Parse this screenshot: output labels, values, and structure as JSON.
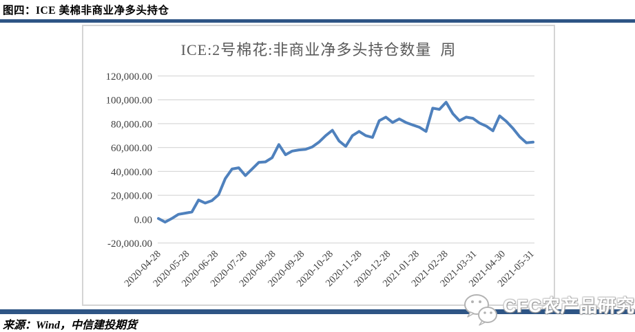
{
  "figure": {
    "title": "图四：ICE 美棉非商业净多头持仓"
  },
  "footer": {
    "source": "来源：Wind，中信建投期货"
  },
  "watermark": {
    "icon": "wechat-logo",
    "text": "CFC农产品研究"
  },
  "colors": {
    "accent_bar": "#2e5585",
    "line": "#4f81bd",
    "gridline": "#d9d9d9",
    "axis_text": "#404040",
    "title_text": "#595959",
    "frame_border": "#d4d4d4"
  },
  "chart_data": {
    "type": "line",
    "title": "ICE:2号棉花:非商业净多头持仓数量  周",
    "frequency_label": "周",
    "grid": true,
    "legend": "none",
    "ylim": [
      -20000,
      120000
    ],
    "y_ticks": {
      "labels": [
        "120,000.00",
        "100,000.00",
        "80,000.00",
        "60,000.00",
        "40,000.00",
        "20,000.00",
        "0.00",
        "-20,000.00"
      ],
      "values": [
        120000,
        100000,
        80000,
        60000,
        40000,
        20000,
        0,
        -20000
      ]
    },
    "x_tick_labels": [
      "2020-04-28",
      "2020-05-28",
      "2020-06-28",
      "2020-07-28",
      "2020-08-28",
      "2020-09-28",
      "2020-10-28",
      "2020-11-28",
      "2020-12-28",
      "2021-01-28",
      "2021-02-28",
      "2021-03-31",
      "2021-04-30",
      "2021-05-31"
    ],
    "series": [
      {
        "name": "ICE:2号棉花:非商业净多头持仓数量",
        "values": [
          500,
          -2500,
          500,
          4000,
          5000,
          6000,
          16000,
          13500,
          15500,
          20500,
          34000,
          42000,
          43000,
          36500,
          42000,
          47500,
          48000,
          51500,
          62500,
          54000,
          57000,
          58000,
          58500,
          60500,
          64500,
          70000,
          74500,
          65500,
          61000,
          70000,
          73500,
          70000,
          68500,
          82500,
          85500,
          81000,
          84000,
          81000,
          79000,
          77000,
          73500,
          93000,
          92000,
          98000,
          88500,
          82500,
          85500,
          84500,
          80500,
          78000,
          74000,
          86500,
          82000,
          76000,
          69000,
          64000,
          64500
        ]
      }
    ]
  }
}
